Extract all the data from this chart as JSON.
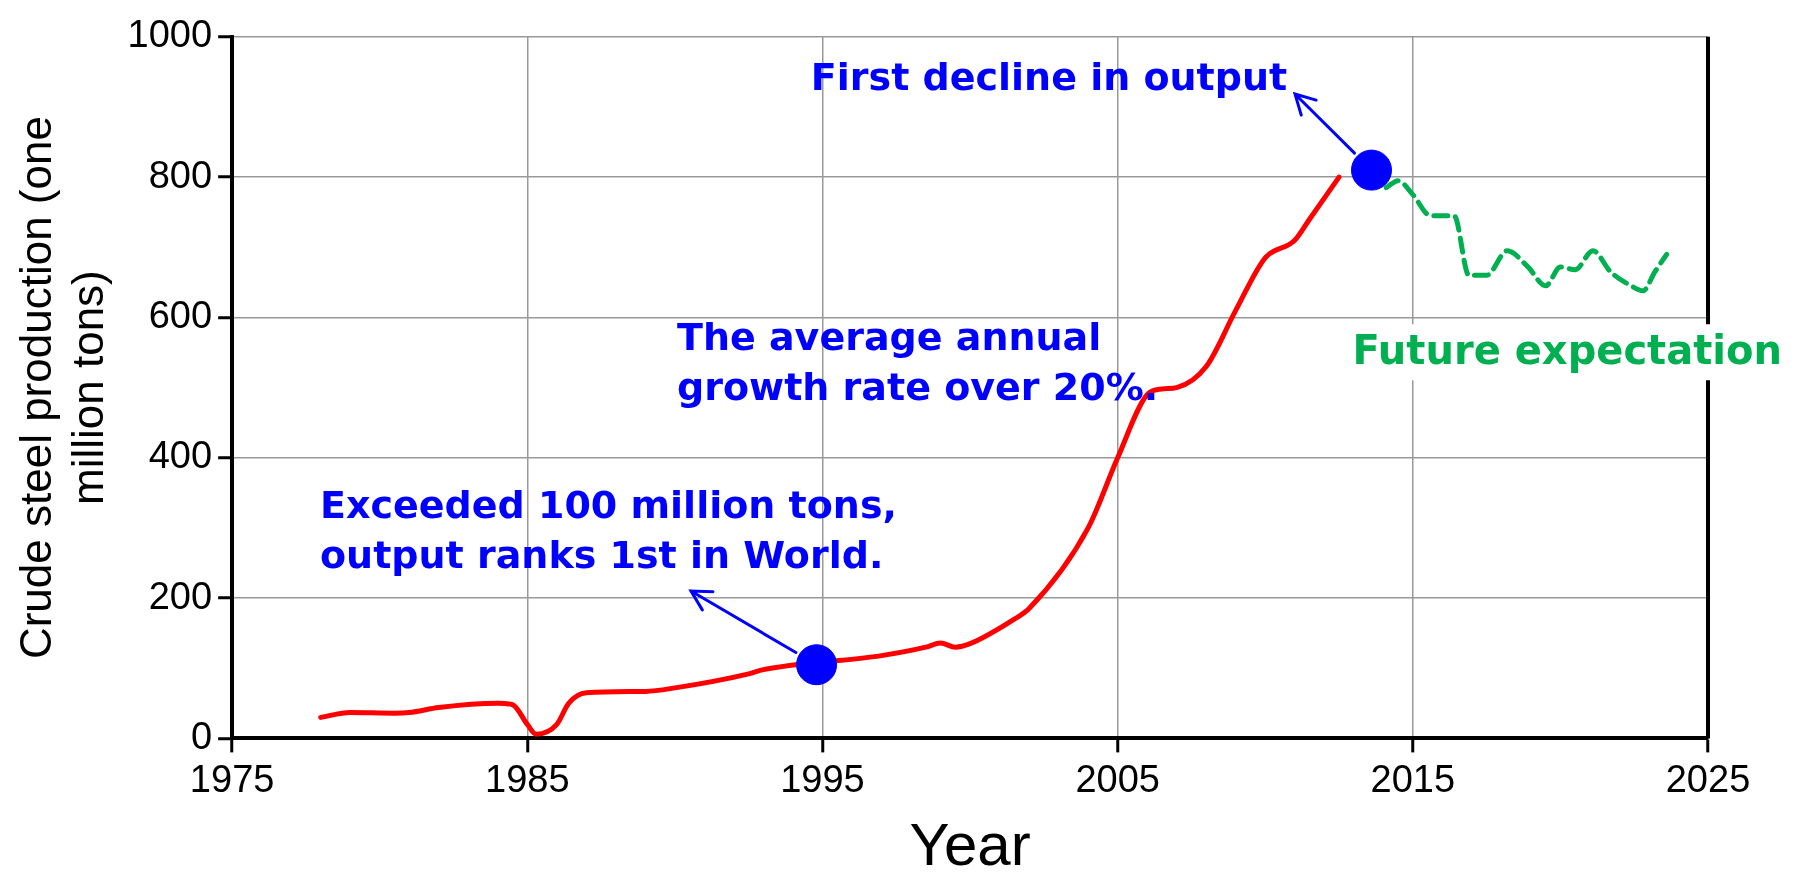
{
  "chart_data": {
    "type": "line",
    "xlabel": "Year",
    "ylabel": "Crude steel production (one million tons)",
    "xlim": [
      1975,
      2025
    ],
    "xticks": [
      1975,
      1985,
      1995,
      2005,
      2015,
      2025
    ],
    "ylim": [
      0,
      1000
    ],
    "yticks": [
      0,
      200,
      400,
      600,
      800,
      1000
    ],
    "grid": true,
    "legend": false,
    "series": [
      {
        "color": "#ff0000",
        "line_style": "solid",
        "marker": "none",
        "x": [
          1978,
          1979,
          1980.5,
          1981,
          1982,
          1984,
          1984.5,
          1985,
          1985.3,
          1986,
          1986.4,
          1987,
          1989,
          1990,
          1992.5,
          1993,
          1997,
          1998.5,
          1999,
          1999.5,
          2000,
          2001.5,
          2002,
          2004,
          2005,
          2006,
          2006.5,
          2007,
          2008,
          2009,
          2010,
          2011,
          2011.5,
          2012.5
        ],
        "values": [
          30,
          37,
          36,
          37,
          44,
          50,
          48,
          20,
          6,
          20,
          50,
          65,
          67,
          72,
          92,
          98,
          118,
          130,
          136,
          130,
          135,
          170,
          185,
          300,
          400,
          490,
          498,
          500,
          530,
          610,
          685,
          710,
          740,
          800
        ]
      },
      {
        "name": "Future expectation",
        "color": "#00b050",
        "line_style": "dashed",
        "marker": "none",
        "x": [
          2014.1,
          2014.5,
          2015,
          2015.6,
          2016.4,
          2016.9,
          2017.5,
          2018.2,
          2018.9,
          2019.5,
          2020,
          2020.5,
          2021.1,
          2021.7,
          2022.4,
          2022.8,
          2023.2,
          2023.6
        ],
        "values": [
          785,
          795,
          775,
          745,
          745,
          660,
          660,
          695,
          672,
          645,
          672,
          668,
          695,
          665,
          645,
          638,
          665,
          690
        ]
      },
      {
        "type": "scatter",
        "color": "#0000ff",
        "marker": "circle",
        "x": [
          1994.8,
          2013.6
        ],
        "values": [
          105,
          810
        ]
      }
    ],
    "annotations": [
      {
        "text": "First decline in output",
        "x": 2013.6,
        "y": 810
      },
      "The average annual growth rate over 20%.",
      {
        "text": "Exceeded 100 million tons, output ranks 1st in World.",
        "x": 1994.8,
        "y": 105
      }
    ]
  }
}
